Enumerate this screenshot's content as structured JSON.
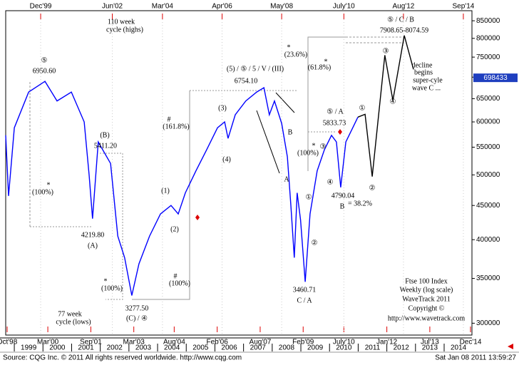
{
  "chart_data": {
    "type": "line",
    "log_scale": true,
    "xlim": [
      1998.7,
      2014.97
    ],
    "ylim": [
      288000,
      880000
    ],
    "yticks": [
      300000,
      350000,
      400000,
      450000,
      500000,
      550000,
      600000,
      650000,
      700000,
      750000,
      800000,
      850000
    ],
    "xticks": [
      {
        "value": 1998.75,
        "label": "Oct'98"
      },
      {
        "value": 2000.17,
        "label": "Mar'00"
      },
      {
        "value": 2001.67,
        "label": "Sep'01"
      },
      {
        "value": 2003.17,
        "label": "Mar'03"
      },
      {
        "value": 2004.58,
        "label": "Aug'04"
      },
      {
        "value": 2006.08,
        "label": "Feb'06"
      },
      {
        "value": 2007.58,
        "label": "Aug'07"
      },
      {
        "value": 2009.08,
        "label": "Feb'09"
      },
      {
        "value": 2010.5,
        "label": "July'10"
      },
      {
        "value": 2012.0,
        "label": "Jan'12"
      },
      {
        "value": 2013.5,
        "label": "Jul'13"
      },
      {
        "value": 2014.92,
        "label": "Dec'14"
      }
    ],
    "x2ticks": [
      {
        "value": 1999.92,
        "label": "Dec'99"
      },
      {
        "value": 2002.42,
        "label": "Jun'02"
      },
      {
        "value": 2004.17,
        "label": "Mar'04"
      },
      {
        "value": 2006.25,
        "label": "Apr'06"
      },
      {
        "value": 2008.33,
        "label": "May'08"
      },
      {
        "value": 2010.5,
        "label": "July'10"
      },
      {
        "value": 2012.58,
        "label": "Aug'12"
      },
      {
        "value": 2014.67,
        "label": "Sep'14"
      }
    ],
    "year_labels": [
      1999,
      2000,
      2001,
      2002,
      2003,
      2004,
      2005,
      2006,
      2007,
      2008,
      2009,
      2010,
      2011,
      2012,
      2013,
      2014
    ],
    "last_value": 698433,
    "series": [
      {
        "color": "#0000ff",
        "x": [
          1998.7,
          1998.8,
          1999.0,
          1999.5,
          2000.07,
          2000.49,
          2000.99,
          2001.44,
          2001.61,
          2001.73,
          2001.93,
          2002.36,
          2002.61,
          2002.85,
          2003.1,
          2003.35,
          2003.72,
          2004.1,
          2004.47,
          2004.72,
          2004.97,
          2005.34,
          2005.71,
          2006.09,
          2006.34,
          2006.46,
          2006.71,
          2007.08,
          2007.46,
          2007.71,
          2007.9,
          2008.08,
          2008.33,
          2008.53,
          2008.65,
          2008.77,
          2008.87,
          2008.99,
          2009.15,
          2009.32,
          2009.57,
          2009.82,
          2010.07,
          2010.24,
          2010.39,
          2010.57,
          2010.81,
          2010.99
        ],
        "values": [
          573000,
          465000,
          588000,
          665000,
          690000,
          645000,
          665000,
          600000,
          500000,
          430000,
          560000,
          520000,
          405000,
          376000,
          330000,
          368000,
          405000,
          437000,
          450000,
          437000,
          470000,
          507000,
          545000,
          588000,
          600000,
          567000,
          615000,
          645000,
          665000,
          675000,
          615000,
          645000,
          597000,
          532000,
          450000,
          376000,
          470000,
          428000,
          346000,
          437000,
          507000,
          545000,
          573000,
          560000,
          479000,
          560000,
          588000,
          610000
        ]
      },
      {
        "color": "#000000",
        "x": [
          2010.99,
          2011.24,
          2011.49,
          2011.93,
          2012.21,
          2012.61,
          2012.93
        ],
        "values": [
          610000,
          616000,
          497000,
          755000,
          646000,
          808000,
          719000
        ]
      }
    ],
    "annotations": [
      "⑤",
      "6950.60",
      "(B)",
      "5411.20",
      "4219.80",
      "(A)",
      "*",
      "(100%)",
      "*",
      "(100%)",
      "3277.50",
      "(C) / ④",
      "#",
      "(161.8%)",
      "#",
      "(100%)",
      "(1)",
      "(2)",
      "(3)",
      "(4)",
      "(5) / ⑤ / 5 / V / (III)",
      "6754.10",
      "B",
      "A",
      "*",
      "(23.6%)",
      "*",
      "(61.8%)",
      "*",
      "(100%)",
      "⑤ / A",
      "5833.73",
      "③",
      "④",
      "①",
      "②",
      "4790.04",
      "B",
      "= 38.2%",
      "3460.71",
      "C / A",
      "①",
      "②",
      "③",
      "④",
      "⑤ / C / B",
      "7908.65-8074.59",
      "decline",
      "begins",
      "super-cyle",
      "wave C ...",
      "110 week",
      "cycle (highs)",
      "77 week",
      "cycle (lows)",
      "Ftse 100 Index",
      "Weekly (log scale)",
      "WaveTrack 2011",
      "Copyright ©",
      "http://www.wavetrack.com"
    ],
    "source": "Source: CQG Inc. © 2011 All rights reserved worldwide.  http://www.cqg.com",
    "timestamp": "Sat Jan 08 2011 13:59:27"
  }
}
